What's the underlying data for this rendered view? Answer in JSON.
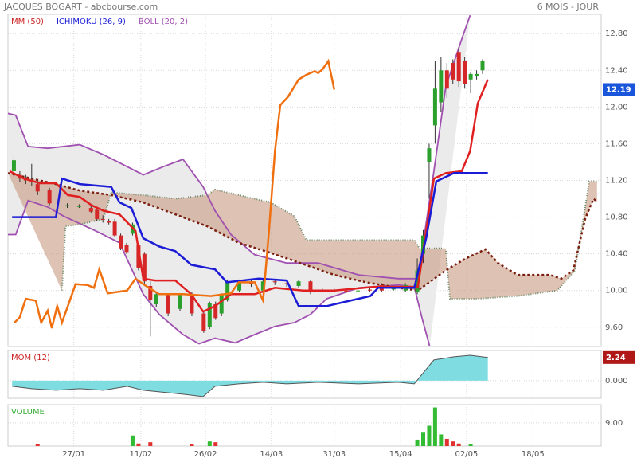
{
  "header": {
    "title": "JACQUES BOGART - abcbourse.com",
    "period": "6 MOIS - JOUR"
  },
  "chart_data": [
    {
      "type": "candlestick",
      "legend": [
        {
          "name": "MM (50)",
          "color": "#cc2222"
        },
        {
          "name": "ICHIMOKU (26, 9)",
          "color": "#1c1cd6"
        },
        {
          "name": "BOLL (20, 2)",
          "color": "#a050b0"
        }
      ],
      "xlim": [
        0,
        100
      ],
      "xticks": [
        {
          "value": 11.1,
          "label": "27/01"
        },
        {
          "value": 22.4,
          "label": "11/02"
        },
        {
          "value": 33.3,
          "label": "26/02"
        },
        {
          "value": 44.4,
          "label": "14/03"
        },
        {
          "value": 55,
          "label": "31/03"
        },
        {
          "value": 66.2,
          "label": "15/04"
        },
        {
          "value": 77.3,
          "label": "02/05"
        },
        {
          "value": 88.5,
          "label": "18/05"
        }
      ],
      "ylim": [
        9.39,
        13.01
      ],
      "yticks": [
        {
          "value": 9.6,
          "label": "9.60"
        },
        {
          "value": 10,
          "label": "10.00"
        },
        {
          "value": 10.4,
          "label": "10.40"
        },
        {
          "value": 10.8,
          "label": "10.80"
        },
        {
          "value": 11.2,
          "label": "11.20"
        },
        {
          "value": 11.6,
          "label": "11.60"
        },
        {
          "value": 12,
          "label": "12.00"
        },
        {
          "value": 12.4,
          "label": "12.40"
        },
        {
          "value": 12.8,
          "label": "12.80"
        }
      ],
      "grid": true,
      "up_color": "#2ca02c",
      "down_color": "#d62728",
      "last": {
        "value": 12.19,
        "color": "#1a56db"
      },
      "candles": {
        "x": [
          1,
          2,
          3,
          4,
          5,
          7,
          10,
          12,
          14,
          15,
          16,
          17,
          18,
          19,
          20,
          21,
          22,
          23,
          24,
          25,
          27,
          29,
          31,
          33,
          34,
          35,
          36,
          37,
          39,
          41,
          43,
          45,
          47,
          49,
          51,
          53,
          55,
          57,
          59,
          61,
          63,
          65,
          67,
          69,
          70,
          71,
          72,
          73,
          74,
          75,
          76,
          77,
          78,
          79,
          80
        ],
        "open": [
          11.3,
          11.26,
          11.22,
          11.2,
          11.16,
          11.1,
          10.92,
          10.92,
          10.9,
          10.88,
          10.78,
          10.76,
          10.75,
          10.6,
          10.5,
          10.62,
          10.5,
          10.4,
          10.05,
          9.85,
          9.95,
          9.8,
          9.95,
          9.75,
          9.6,
          9.85,
          9.75,
          9.9,
          10.0,
          10.08,
          10.0,
          10.1,
          10.08,
          10.05,
          10.1,
          10.0,
          10.0,
          10.0,
          10.0,
          10.01,
          10.06,
          10.02,
          10.0,
          9.98,
          10.4,
          11.4,
          11.8,
          12.05,
          12.4,
          12.48,
          12.6,
          12.5,
          12.3,
          12.34,
          12.4
        ],
        "high": [
          11.46,
          11.3,
          11.26,
          11.38,
          11.2,
          11.12,
          10.95,
          10.94,
          10.92,
          10.9,
          10.82,
          10.78,
          10.78,
          10.62,
          10.52,
          10.74,
          10.52,
          10.42,
          10.1,
          9.98,
          9.97,
          9.97,
          9.98,
          9.78,
          9.88,
          9.88,
          9.97,
          10.12,
          10.12,
          10.12,
          10.12,
          10.12,
          10.1,
          10.12,
          10.12,
          10.02,
          10.02,
          10.02,
          10.02,
          10.03,
          10.08,
          10.05,
          10.08,
          10.35,
          10.66,
          11.6,
          12.5,
          12.55,
          12.48,
          12.52,
          12.65,
          12.55,
          12.38,
          12.4,
          12.52
        ],
        "low": [
          11.24,
          11.18,
          11.16,
          11.14,
          11.04,
          10.93,
          10.9,
          10.9,
          10.84,
          10.76,
          10.74,
          10.72,
          10.58,
          10.44,
          10.4,
          10.6,
          10.22,
          10.05,
          9.5,
          9.82,
          9.72,
          9.78,
          9.72,
          9.54,
          9.58,
          9.68,
          9.72,
          9.88,
          9.98,
          10.04,
          9.98,
          10.06,
          10.04,
          10.03,
          9.96,
          9.98,
          9.98,
          9.97,
          9.98,
          9.98,
          9.98,
          10.0,
          9.98,
          9.96,
          10.3,
          11.0,
          11.6,
          11.95,
          12.1,
          12.25,
          12.22,
          12.2,
          12.15,
          12.3,
          12.36
        ],
        "close": [
          11.42,
          11.22,
          11.2,
          11.19,
          11.08,
          10.95,
          10.93,
          10.92,
          10.86,
          10.78,
          10.77,
          10.74,
          10.6,
          10.46,
          10.42,
          10.72,
          10.25,
          10.1,
          9.9,
          9.96,
          9.75,
          9.95,
          9.75,
          9.56,
          9.86,
          9.7,
          9.95,
          10.1,
          10.1,
          10.07,
          10.1,
          10.09,
          10.07,
          10.1,
          9.98,
          10.0,
          10.0,
          9.99,
          10.0,
          10.0,
          10.0,
          10.02,
          10.06,
          10.22,
          10.6,
          11.55,
          12.2,
          12.4,
          12.2,
          12.3,
          12.28,
          12.25,
          12.36,
          12.36,
          12.5
        ]
      },
      "band": {
        "fill": "#ebebeb",
        "color": "#a050b0",
        "upper": {
          "x": [
            0,
            1.3,
            3.4,
            6.7,
            12.1,
            16.1,
            20.1,
            22.8,
            26.2,
            29.5,
            32.9,
            34.9,
            37.6,
            41.6,
            47,
            52.3,
            59.1,
            65.8,
            69.1,
            71.8,
            73.8,
            76.5,
            77.9
          ],
          "values": [
            11.93,
            11.91,
            11.57,
            11.55,
            11.59,
            11.48,
            11.35,
            11.26,
            11.35,
            11.43,
            11.13,
            10.87,
            10.61,
            10.39,
            10.3,
            10.3,
            10.17,
            10.13,
            10.13,
            11.3,
            12.22,
            12.74,
            13.0
          ]
        },
        "lower": {
          "x": [
            0,
            1.3,
            3.4,
            6.7,
            9.4,
            14.8,
            18.8,
            22.8,
            25.5,
            29.5,
            32.2,
            34.9,
            38.3,
            41.6,
            45,
            48.3,
            51,
            53.7,
            59.1,
            65.8,
            68.5,
            69.8,
            71.1
          ],
          "values": [
            10.61,
            10.61,
            10.98,
            10.91,
            10.81,
            10.65,
            10.52,
            9.96,
            9.74,
            9.52,
            9.42,
            9.48,
            9.43,
            9.52,
            9.61,
            9.65,
            9.74,
            9.91,
            10.03,
            10.06,
            10.04,
            9.7,
            9.39
          ]
        }
      },
      "cloud": {
        "fill": "#c89a80",
        "color_a": "#7a1f10",
        "color_b": "#6a8a6a",
        "a": {
          "x": [
            0,
            4,
            8.1,
            12.1,
            17.4,
            22.8,
            28.2,
            33.6,
            38.9,
            44.3,
            49.7,
            55,
            60.4,
            65.8,
            69.1,
            73.8,
            77.2,
            80.5,
            82.6,
            85.9,
            91.3,
            93.3,
            95.3,
            97.3,
            98.7,
            99.3
          ],
          "values": [
            11.28,
            11.22,
            11.16,
            11.09,
            11.04,
            10.96,
            10.83,
            10.7,
            10.52,
            10.41,
            10.29,
            10.17,
            10.09,
            10.03,
            10.0,
            10.22,
            10.35,
            10.45,
            10.3,
            10.17,
            10.17,
            10.13,
            10.22,
            10.78,
            11.0,
            10.97
          ]
        },
        "b": {
          "x": [
            9.1,
            9.7,
            12.1,
            16.1,
            17.4,
            22.8,
            28.2,
            33.6,
            34.9,
            38.9,
            44.3,
            48.3,
            50.3,
            56.4,
            68.5,
            69.4,
            73.8,
            74.5,
            79.2,
            85.9,
            92.6,
            95.6,
            98,
            99.3
          ],
          "values": [
            10.0,
            10.7,
            10.72,
            10.78,
            11.07,
            11.04,
            11.0,
            11.04,
            11.1,
            11.04,
            10.96,
            10.81,
            10.55,
            10.55,
            10.55,
            10.46,
            10.46,
            9.91,
            9.91,
            9.94,
            10.0,
            10.22,
            11.19,
            11.19
          ]
        }
      },
      "lines": [
        {
          "color": "#e02020",
          "x": [
            0.3,
            2.7,
            5.4,
            8.1,
            10.1,
            12.1,
            14.1,
            16.1,
            18.8,
            21.5,
            22.8,
            24.8,
            28.2,
            30.9,
            32.9,
            34.9,
            37.6,
            41.6,
            45,
            49.7,
            55,
            61.7,
            69.1,
            70.5,
            71.8,
            73.8,
            76.5,
            77.9,
            79.2,
            80.9
          ],
          "values": [
            11.3,
            11.22,
            11.17,
            11.17,
            11.04,
            11.02,
            10.93,
            10.87,
            10.83,
            10.65,
            10.13,
            10.11,
            10.11,
            9.96,
            9.77,
            9.83,
            9.96,
            9.96,
            10.03,
            10.0,
            10.0,
            10.04,
            10.04,
            10.65,
            11.22,
            11.28,
            11.3,
            11.52,
            12.04,
            12.3
          ]
        },
        {
          "color": "#1c1cd6",
          "x": [
            0.7,
            8.1,
            9.1,
            12.1,
            17.4,
            18.8,
            20.8,
            22.8,
            25.5,
            28.2,
            30.9,
            34.9,
            36.9,
            42.3,
            47,
            49,
            53.7,
            57.7,
            61.1,
            62.4,
            68.5,
            70.5,
            72.2,
            75.2,
            80.9
          ],
          "values": [
            10.8,
            10.8,
            11.22,
            11.16,
            11.13,
            10.96,
            10.9,
            10.57,
            10.48,
            10.43,
            10.28,
            10.23,
            10.09,
            10.13,
            10.11,
            9.83,
            9.83,
            9.89,
            9.94,
            10.03,
            10.03,
            10.57,
            11.19,
            11.28,
            11.28
          ]
        },
        {
          "color": "#f07010",
          "x": [
            1.1,
            2,
            3,
            4.7,
            5.6,
            6.7,
            7.4,
            8.3,
            9.1,
            10.1,
            11.4,
            13.4,
            14.5,
            15.4,
            16.8,
            20.1,
            21.5,
            23.5,
            25.5,
            29.5,
            34.2,
            37.6,
            38.9,
            41.6,
            43,
            44,
            45,
            45.9,
            47.2,
            49,
            50.3,
            51.7,
            52.3,
            53,
            54,
            55
          ],
          "values": [
            9.65,
            9.71,
            9.91,
            9.89,
            9.65,
            9.78,
            9.59,
            9.83,
            9.65,
            9.83,
            10.07,
            10.06,
            10.03,
            10.23,
            9.97,
            10.0,
            10.13,
            10.04,
            9.96,
            9.96,
            9.94,
            9.97,
            10.09,
            10.09,
            9.89,
            10.65,
            11.52,
            12.02,
            12.11,
            12.3,
            12.35,
            12.39,
            12.37,
            12.41,
            12.5,
            12.19
          ]
        }
      ]
    },
    {
      "type": "area",
      "title": "MOM (12)",
      "title_color": "#cc2222",
      "color": "#7fdde2",
      "line_color": "#555555",
      "ylim": [
        -1.7,
        2.92
      ],
      "yticks": [
        {
          "value": 0,
          "label": "0.000"
        }
      ],
      "last": {
        "value": 2.24,
        "color": "#b01818"
      },
      "x": [
        0.7,
        4,
        8.1,
        12.1,
        16.1,
        20.1,
        22.8,
        25.5,
        29.5,
        32.9,
        34.9,
        38.9,
        43,
        47,
        52.3,
        59.1,
        65.8,
        68.5,
        69.8,
        71.8,
        75.2,
        77.9,
        80.9
      ],
      "values": [
        -0.54,
        -0.77,
        -0.92,
        -0.77,
        -0.92,
        -0.54,
        -0.92,
        -1.08,
        -1.31,
        -1.54,
        -0.54,
        -0.31,
        -0.15,
        -0.31,
        -0.15,
        -0.31,
        -0.15,
        -0.31,
        0.62,
        2.0,
        2.31,
        2.46,
        2.24
      ]
    },
    {
      "type": "volume",
      "title": "VOLUME",
      "title_color": "#33aa33",
      "ylim": [
        0,
        16.1
      ],
      "yticks": [
        {
          "value": 9,
          "label": "9.00"
        }
      ],
      "x": [
        5,
        21,
        22,
        24,
        31,
        34,
        35,
        69,
        70,
        71,
        72,
        73,
        74,
        75,
        76,
        78
      ],
      "values": [
        0.8,
        4.1,
        1,
        1.5,
        0.8,
        1.8,
        1.5,
        2.5,
        5.5,
        7.9,
        15,
        4.5,
        2.8,
        1.8,
        1,
        0.8
      ],
      "colors": [
        "#e03030",
        "#33bb33",
        "#e03030",
        "#e03030",
        "#e03030",
        "#33bb33",
        "#e03030",
        "#33bb33",
        "#33bb33",
        "#33bb33",
        "#33bb33",
        "#33bb33",
        "#e03030",
        "#e03030",
        "#e03030",
        "#33bb33"
      ]
    }
  ]
}
